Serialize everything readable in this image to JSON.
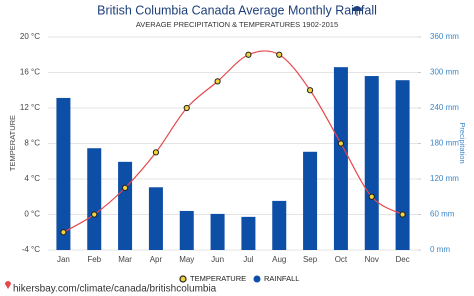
{
  "chart_data": {
    "type": "combo",
    "title": "British Columbia Canada Average Monthly Rainfall",
    "subtitle": "AVERAGE PRECIPITATION & TEMPERATURES 1902-2015",
    "ylabel": "TEMPERATURE",
    "y2label": "Precipitation",
    "footer": "hikersbay.com/climate/canada/britishcolumbia",
    "categories": [
      "Jan",
      "Feb",
      "Mar",
      "Apr",
      "May",
      "Jun",
      "Jul",
      "Aug",
      "Sep",
      "Oct",
      "Nov",
      "Dec"
    ],
    "series": [
      {
        "name": "TEMPERATURE",
        "type": "line",
        "color": "#e8474b",
        "values": [
          -2,
          0,
          3,
          7,
          12,
          15,
          18,
          18,
          14,
          8,
          2,
          0
        ]
      },
      {
        "name": "RAINFALL",
        "type": "bar",
        "axis": "y2",
        "color": "#0d4ea6",
        "values": [
          257,
          172,
          149,
          106,
          66,
          61,
          56,
          83,
          166,
          309,
          294,
          287
        ]
      }
    ],
    "ylim": [
      -4,
      20
    ],
    "yticks": [
      {
        "value": -4,
        "label": "-4 °C"
      },
      {
        "value": 0,
        "label": "0 °C"
      },
      {
        "value": 4,
        "label": "4 °C"
      },
      {
        "value": 8,
        "label": "8 °C"
      },
      {
        "value": 12,
        "label": "12 °C"
      },
      {
        "value": 16,
        "label": "16 °C"
      },
      {
        "value": 20,
        "label": "20 °C"
      }
    ],
    "y2lim": [
      0,
      360
    ],
    "y2ticks": [
      {
        "value": 0,
        "label": "0 mm"
      },
      {
        "value": 60,
        "label": "60 mm"
      },
      {
        "value": 120,
        "label": "120 mm"
      },
      {
        "value": 180,
        "label": "180 mm"
      },
      {
        "value": 240,
        "label": "240 mm"
      },
      {
        "value": 300,
        "label": "300 mm"
      },
      {
        "value": 360,
        "label": "360 mm"
      }
    ],
    "grid": true
  }
}
